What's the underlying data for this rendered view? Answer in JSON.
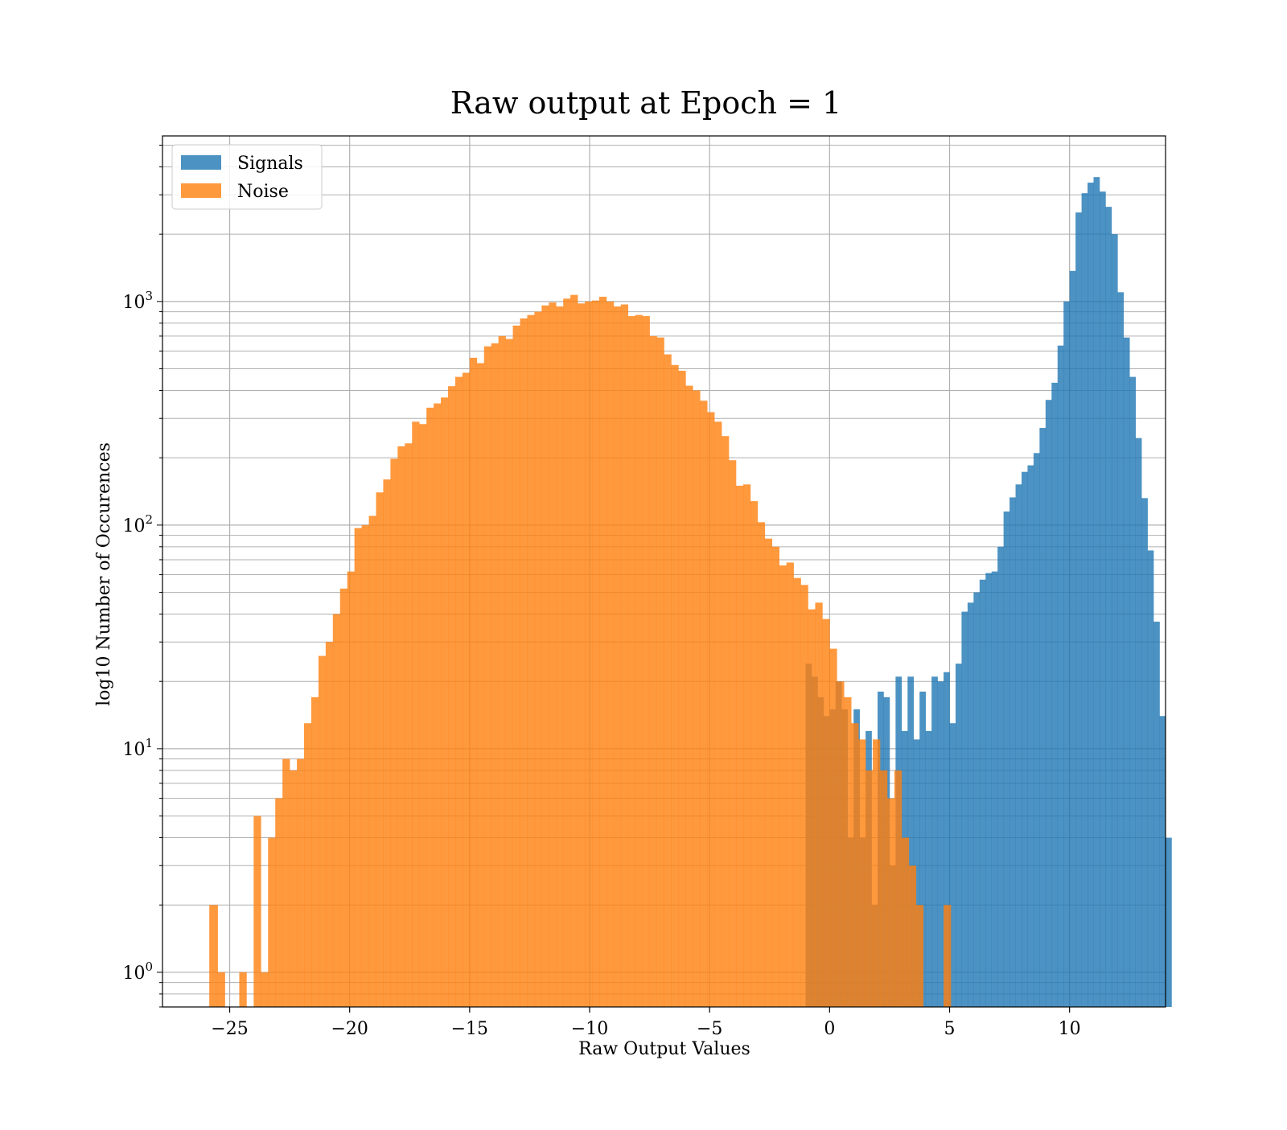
{
  "chart_data": {
    "type": "bar",
    "title": "Raw output at Epoch = 1",
    "xlabel": "Raw Output Values",
    "ylabel": "log10 Number of Occurences",
    "xlim": [
      -27.8,
      14.0
    ],
    "ylim": [
      0.7,
      5500
    ],
    "yscale": "log",
    "grid": true,
    "legend_position": "upper-left",
    "x_ticks": [
      {
        "value": -25,
        "label": "−25"
      },
      {
        "value": -20,
        "label": "−20"
      },
      {
        "value": -15,
        "label": "−15"
      },
      {
        "value": -10,
        "label": "−10"
      },
      {
        "value": -5,
        "label": "−5"
      },
      {
        "value": 0,
        "label": "0"
      },
      {
        "value": 5,
        "label": "5"
      },
      {
        "value": 10,
        "label": "10"
      }
    ],
    "y_ticks": [
      {
        "value": 1,
        "base": "10",
        "exp": "0"
      },
      {
        "value": 10,
        "base": "10",
        "exp": "1"
      },
      {
        "value": 100,
        "base": "10",
        "exp": "2"
      },
      {
        "value": 1000,
        "base": "10",
        "exp": "3"
      }
    ],
    "series": [
      {
        "name": "Signals",
        "color": "#1f77b4",
        "opacity": 0.8,
        "bins": [
          [
            -1.0,
            -0.75,
            24
          ],
          [
            -0.75,
            -0.5,
            21
          ],
          [
            -0.5,
            -0.25,
            17
          ],
          [
            -0.25,
            0.0,
            14
          ],
          [
            0.0,
            0.25,
            15
          ],
          [
            0.25,
            0.5,
            20
          ],
          [
            0.5,
            0.75,
            15
          ],
          [
            0.75,
            1.0,
            4
          ],
          [
            1.0,
            1.25,
            15
          ],
          [
            1.25,
            1.5,
            4
          ],
          [
            1.5,
            1.75,
            12
          ],
          [
            1.75,
            2.0,
            2
          ],
          [
            2.0,
            2.25,
            18
          ],
          [
            2.25,
            2.5,
            17
          ],
          [
            2.5,
            2.75,
            3
          ],
          [
            2.75,
            3.0,
            21
          ],
          [
            3.0,
            3.25,
            12
          ],
          [
            3.25,
            3.5,
            21
          ],
          [
            3.5,
            3.75,
            11
          ],
          [
            3.75,
            4.0,
            18
          ],
          [
            4.0,
            4.25,
            12
          ],
          [
            4.25,
            4.5,
            21
          ],
          [
            4.5,
            4.75,
            20
          ],
          [
            4.75,
            5.0,
            22
          ],
          [
            5.0,
            5.25,
            13
          ],
          [
            5.25,
            5.5,
            24
          ],
          [
            5.5,
            5.75,
            41
          ],
          [
            5.75,
            6.0,
            45
          ],
          [
            6.0,
            6.25,
            50
          ],
          [
            6.25,
            6.5,
            57
          ],
          [
            6.5,
            6.75,
            61
          ],
          [
            6.75,
            7.0,
            62
          ],
          [
            7.0,
            7.25,
            80
          ],
          [
            7.25,
            7.5,
            115
          ],
          [
            7.5,
            7.75,
            133
          ],
          [
            7.75,
            8.0,
            152
          ],
          [
            8.0,
            8.25,
            173
          ],
          [
            8.25,
            8.5,
            185
          ],
          [
            8.5,
            8.75,
            210
          ],
          [
            8.75,
            9.0,
            272
          ],
          [
            9.0,
            9.25,
            363
          ],
          [
            9.25,
            9.5,
            433
          ],
          [
            9.5,
            9.75,
            635
          ],
          [
            9.75,
            10.0,
            1000
          ],
          [
            10.0,
            10.25,
            1370
          ],
          [
            10.25,
            10.5,
            2500
          ],
          [
            10.5,
            10.75,
            3050
          ],
          [
            10.75,
            11.0,
            3400
          ],
          [
            11.0,
            11.25,
            3600
          ],
          [
            11.25,
            11.5,
            3100
          ],
          [
            11.5,
            11.75,
            2650
          ],
          [
            11.75,
            12.0,
            2000
          ],
          [
            12.0,
            12.25,
            1100
          ],
          [
            12.25,
            12.5,
            690
          ],
          [
            12.5,
            12.75,
            460
          ],
          [
            12.75,
            13.0,
            245
          ],
          [
            13.0,
            13.25,
            132
          ],
          [
            13.25,
            13.5,
            77
          ],
          [
            13.5,
            13.75,
            37
          ],
          [
            13.75,
            14.0,
            14
          ],
          [
            14.0,
            14.25,
            4
          ]
        ]
      },
      {
        "name": "Noise",
        "color": "#ff7f0e",
        "opacity": 0.8,
        "bins": [
          [
            -25.85,
            -25.5,
            2
          ],
          [
            -25.5,
            -25.2,
            1
          ],
          [
            -24.6,
            -24.3,
            1
          ],
          [
            -24.0,
            -23.7,
            5
          ],
          [
            -23.7,
            -23.4,
            1
          ],
          [
            -23.4,
            -23.1,
            4
          ],
          [
            -23.1,
            -22.8,
            6
          ],
          [
            -22.8,
            -22.5,
            9
          ],
          [
            -22.5,
            -22.2,
            8
          ],
          [
            -22.2,
            -21.9,
            9
          ],
          [
            -21.9,
            -21.6,
            13
          ],
          [
            -21.6,
            -21.3,
            17
          ],
          [
            -21.3,
            -21.0,
            26
          ],
          [
            -21.0,
            -20.7,
            30
          ],
          [
            -20.7,
            -20.4,
            40
          ],
          [
            -20.4,
            -20.1,
            52
          ],
          [
            -20.1,
            -19.8,
            62
          ],
          [
            -19.8,
            -19.5,
            97
          ],
          [
            -19.5,
            -19.2,
            100
          ],
          [
            -19.2,
            -18.9,
            110
          ],
          [
            -18.9,
            -18.6,
            140
          ],
          [
            -18.6,
            -18.3,
            160
          ],
          [
            -18.3,
            -18.0,
            198
          ],
          [
            -18.0,
            -17.7,
            225
          ],
          [
            -17.7,
            -17.4,
            232
          ],
          [
            -17.4,
            -17.1,
            290
          ],
          [
            -17.1,
            -16.8,
            283
          ],
          [
            -16.8,
            -16.5,
            335
          ],
          [
            -16.5,
            -16.2,
            350
          ],
          [
            -16.2,
            -15.9,
            372
          ],
          [
            -15.9,
            -15.6,
            418
          ],
          [
            -15.6,
            -15.3,
            460
          ],
          [
            -15.3,
            -15.0,
            480
          ],
          [
            -15.0,
            -14.7,
            560
          ],
          [
            -14.7,
            -14.4,
            530
          ],
          [
            -14.4,
            -14.1,
            630
          ],
          [
            -14.1,
            -13.8,
            650
          ],
          [
            -13.8,
            -13.5,
            700
          ],
          [
            -13.5,
            -13.2,
            680
          ],
          [
            -13.2,
            -12.9,
            780
          ],
          [
            -12.9,
            -12.6,
            840
          ],
          [
            -12.6,
            -12.3,
            870
          ],
          [
            -12.3,
            -12.0,
            900
          ],
          [
            -12.0,
            -11.7,
            960
          ],
          [
            -11.7,
            -11.4,
            990
          ],
          [
            -11.4,
            -11.1,
            950
          ],
          [
            -11.1,
            -10.8,
            1030
          ],
          [
            -10.8,
            -10.5,
            1070
          ],
          [
            -10.5,
            -10.2,
            980
          ],
          [
            -10.2,
            -9.9,
            1000
          ],
          [
            -9.9,
            -9.6,
            1010
          ],
          [
            -9.6,
            -9.3,
            1050
          ],
          [
            -9.3,
            -9.0,
            1000
          ],
          [
            -9.0,
            -8.7,
            950
          ],
          [
            -8.7,
            -8.4,
            970
          ],
          [
            -8.4,
            -8.1,
            860
          ],
          [
            -8.1,
            -7.8,
            870
          ],
          [
            -7.8,
            -7.5,
            860
          ],
          [
            -7.5,
            -7.2,
            700
          ],
          [
            -7.2,
            -6.9,
            690
          ],
          [
            -6.9,
            -6.6,
            580
          ],
          [
            -6.6,
            -6.3,
            520
          ],
          [
            -6.3,
            -6.0,
            490
          ],
          [
            -6.0,
            -5.7,
            420
          ],
          [
            -5.7,
            -5.4,
            400
          ],
          [
            -5.4,
            -5.1,
            360
          ],
          [
            -5.1,
            -4.8,
            320
          ],
          [
            -4.8,
            -4.5,
            290
          ],
          [
            -4.5,
            -4.2,
            250
          ],
          [
            -4.2,
            -3.9,
            195
          ],
          [
            -3.9,
            -3.6,
            150
          ],
          [
            -3.6,
            -3.3,
            152
          ],
          [
            -3.3,
            -3.0,
            128
          ],
          [
            -3.0,
            -2.7,
            103
          ],
          [
            -2.7,
            -2.4,
            87
          ],
          [
            -2.4,
            -2.1,
            80
          ],
          [
            -2.1,
            -1.8,
            66
          ],
          [
            -1.8,
            -1.5,
            68
          ],
          [
            -1.5,
            -1.2,
            58
          ],
          [
            -1.2,
            -0.9,
            54
          ],
          [
            -0.9,
            -0.6,
            42
          ],
          [
            -0.6,
            -0.3,
            45
          ],
          [
            -0.3,
            0.0,
            38
          ],
          [
            0.0,
            0.3,
            28
          ],
          [
            0.3,
            0.6,
            20
          ],
          [
            0.6,
            0.9,
            17
          ],
          [
            0.9,
            1.2,
            13
          ],
          [
            1.2,
            1.5,
            11
          ],
          [
            1.5,
            1.8,
            8
          ],
          [
            1.8,
            2.1,
            11
          ],
          [
            2.1,
            2.4,
            8
          ],
          [
            2.4,
            2.7,
            6
          ],
          [
            2.7,
            3.0,
            8
          ],
          [
            3.0,
            3.3,
            4
          ],
          [
            3.3,
            3.6,
            3
          ],
          [
            3.6,
            3.9,
            2
          ],
          [
            4.75,
            5.05,
            2
          ]
        ]
      }
    ]
  }
}
